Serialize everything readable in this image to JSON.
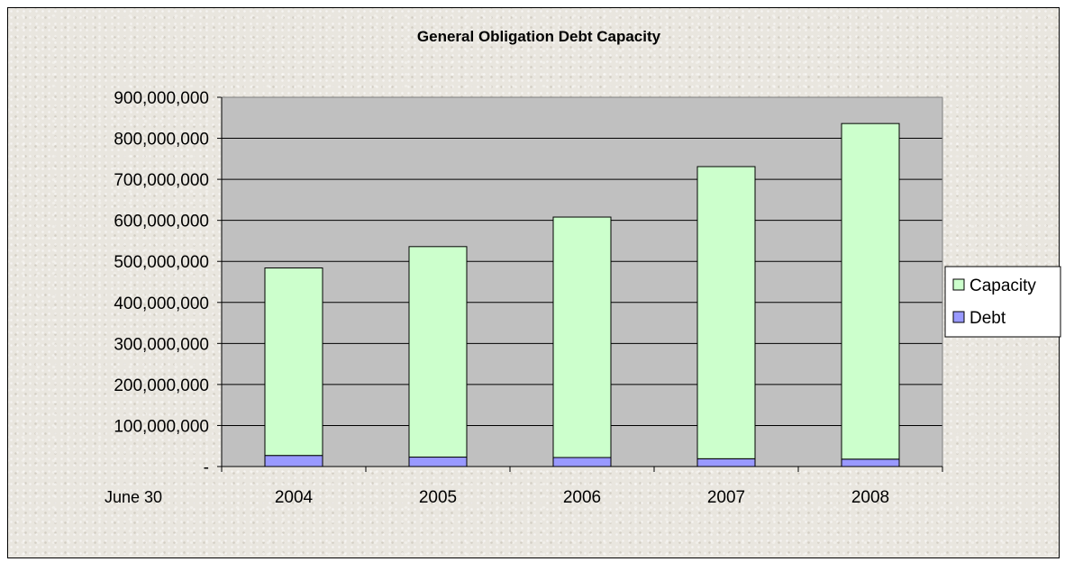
{
  "chart_data": {
    "type": "bar",
    "stacked": true,
    "title": "General Obligation Debt Capacity",
    "xlabel": "June 30",
    "ylabel": "",
    "categories": [
      "2004",
      "2005",
      "2006",
      "2007",
      "2008"
    ],
    "series": [
      {
        "name": "Debt",
        "color": "#9999ff",
        "values": [
          27000000,
          23000000,
          22000000,
          19000000,
          18000000
        ]
      },
      {
        "name": "Capacity",
        "color": "#ccffcc",
        "values": [
          457000000,
          513000000,
          586000000,
          712000000,
          818000000
        ]
      }
    ],
    "ylim": [
      0,
      900000000
    ],
    "yticks": [
      {
        "value": 0,
        "label": "-"
      },
      {
        "value": 100000000,
        "label": "100,000,000"
      },
      {
        "value": 200000000,
        "label": "200,000,000"
      },
      {
        "value": 300000000,
        "label": "300,000,000"
      },
      {
        "value": 400000000,
        "label": "400,000,000"
      },
      {
        "value": 500000000,
        "label": "500,000,000"
      },
      {
        "value": 600000000,
        "label": "600,000,000"
      },
      {
        "value": 700000000,
        "label": "700,000,000"
      },
      {
        "value": 800000000,
        "label": "800,000,000"
      },
      {
        "value": 900000000,
        "label": "900,000,000"
      }
    ],
    "grid": true,
    "plot_background": "#c0c0c0",
    "legend": {
      "position": "right",
      "entries": [
        "Capacity",
        "Debt"
      ]
    }
  }
}
